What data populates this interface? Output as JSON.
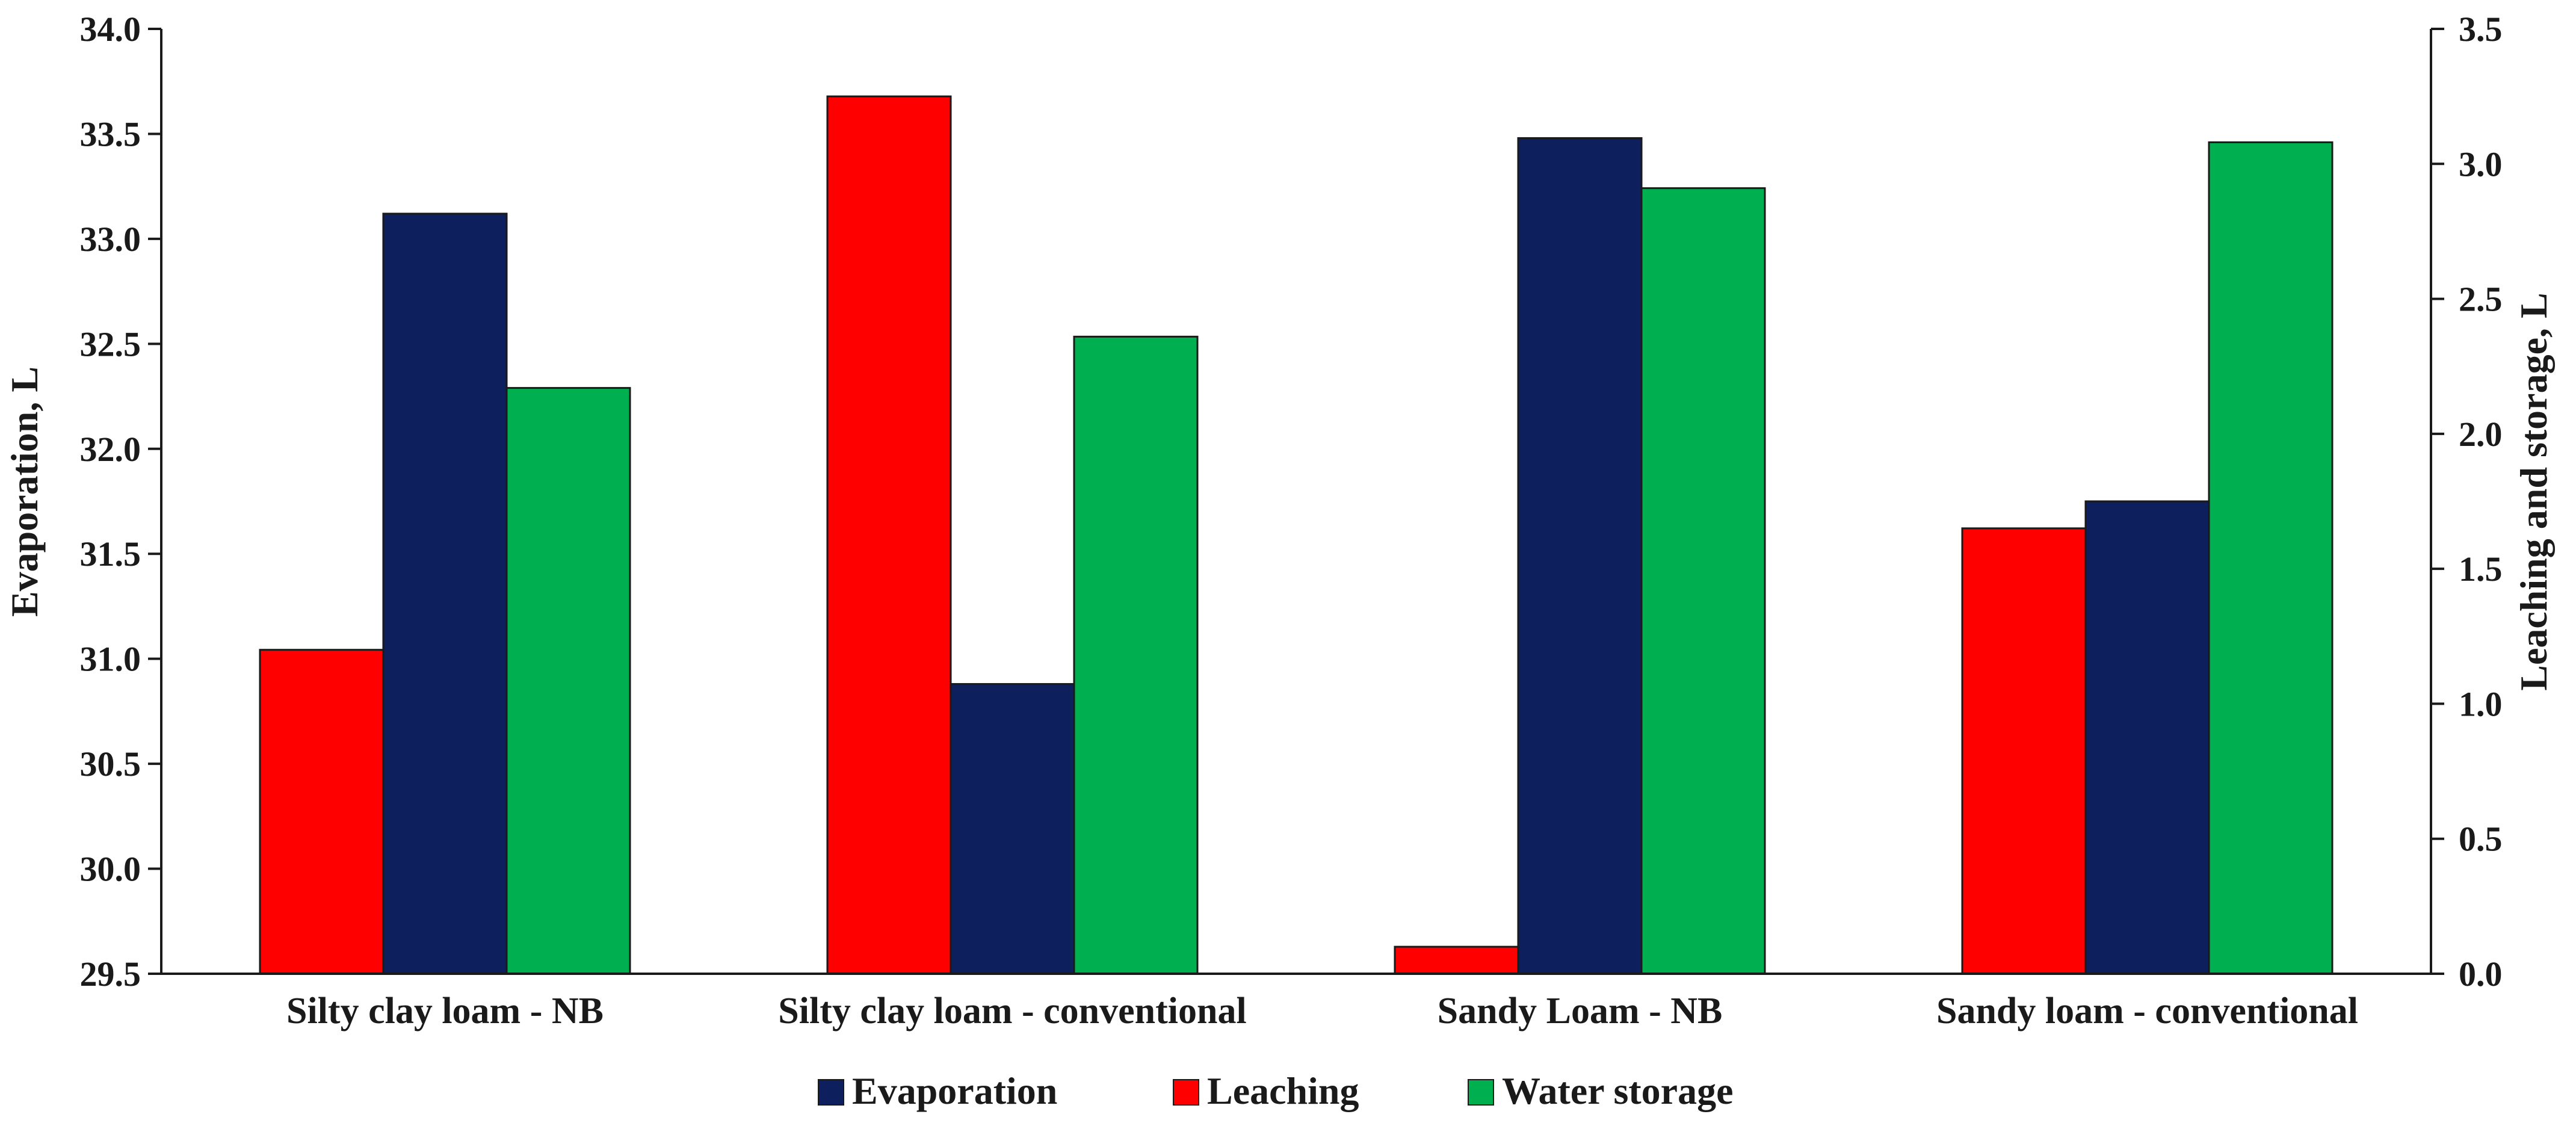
{
  "chart_data": {
    "type": "bar",
    "categories": [
      "Silty clay loam - NB",
      "Silty clay loam - conventional",
      "Sandy Loam - NB",
      "Sandy loam - conventional"
    ],
    "series": [
      {
        "name": "Leaching",
        "axis": "right",
        "color": "#ff0000",
        "values": [
          1.2,
          3.25,
          0.1,
          1.65
        ]
      },
      {
        "name": "Evaporation",
        "axis": "left",
        "color": "#0d1f5c",
        "values": [
          33.12,
          30.88,
          33.48,
          31.75
        ]
      },
      {
        "name": "Water storage",
        "axis": "right",
        "color": "#00b050",
        "values": [
          2.17,
          2.36,
          2.91,
          3.08
        ]
      }
    ],
    "bar_order": [
      "Leaching",
      "Evaporation",
      "Water storage"
    ],
    "legend_order": [
      "Evaporation",
      "Leaching",
      "Water storage"
    ],
    "ylabel": "Evaporation, L",
    "y2label": "Leaching and storage, L",
    "ylim": [
      29.5,
      34.0
    ],
    "y2lim": [
      0.0,
      3.5
    ],
    "yticks": [
      "29.5",
      "30.0",
      "30.5",
      "31.0",
      "31.5",
      "32.0",
      "32.5",
      "33.0",
      "33.5",
      "34.0"
    ],
    "y2ticks": [
      "0.0",
      "0.5",
      "1.0",
      "1.5",
      "2.0",
      "2.5",
      "3.0",
      "3.5"
    ],
    "grid": false,
    "legend_position": "bottom-center"
  }
}
